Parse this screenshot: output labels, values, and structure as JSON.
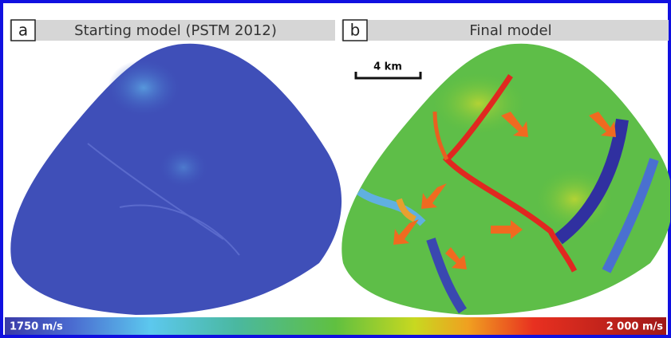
{
  "panels": [
    {
      "label": "a",
      "title": "Starting model (PSTM 2012)"
    },
    {
      "label": "b",
      "title": "Final model",
      "scale_bar": "4 km"
    }
  ],
  "colorbar": {
    "min_label": "1750 m/s",
    "max_label": "2 000 m/s"
  }
}
